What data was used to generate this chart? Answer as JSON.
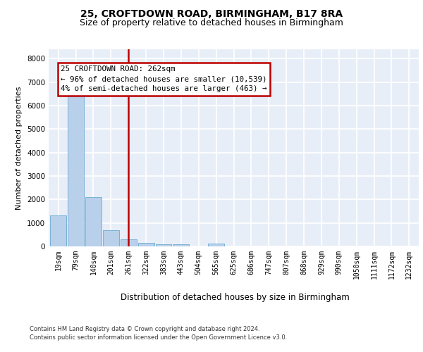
{
  "title1": "25, CROFTDOWN ROAD, BIRMINGHAM, B17 8RA",
  "title2": "Size of property relative to detached houses in Birmingham",
  "xlabel": "Distribution of detached houses by size in Birmingham",
  "ylabel": "Number of detached properties",
  "categories": [
    "19sqm",
    "79sqm",
    "140sqm",
    "201sqm",
    "261sqm",
    "322sqm",
    "383sqm",
    "443sqm",
    "504sqm",
    "565sqm",
    "625sqm",
    "686sqm",
    "747sqm",
    "807sqm",
    "868sqm",
    "929sqm",
    "990sqm",
    "1050sqm",
    "1111sqm",
    "1172sqm",
    "1232sqm"
  ],
  "values": [
    1310,
    6600,
    2090,
    680,
    290,
    140,
    90,
    90,
    0,
    120,
    0,
    0,
    0,
    0,
    0,
    0,
    0,
    0,
    0,
    0,
    0
  ],
  "bar_color": "#b8d0ea",
  "bar_edge_color": "#6aaad4",
  "vline_x": 4.0,
  "vline_color": "#bb0000",
  "annotation_line1": "25 CROFTDOWN ROAD: 262sqm",
  "annotation_line2": "← 96% of detached houses are smaller (10,539)",
  "annotation_line3": "4% of semi-detached houses are larger (463) →",
  "annotation_box_edgecolor": "#bb0000",
  "ylim_max": 8400,
  "yticks": [
    0,
    1000,
    2000,
    3000,
    4000,
    5000,
    6000,
    7000,
    8000
  ],
  "bg_color": "#e8eef8",
  "grid_color": "#ffffff",
  "footer1": "Contains HM Land Registry data © Crown copyright and database right 2024.",
  "footer2": "Contains public sector information licensed under the Open Government Licence v3.0."
}
